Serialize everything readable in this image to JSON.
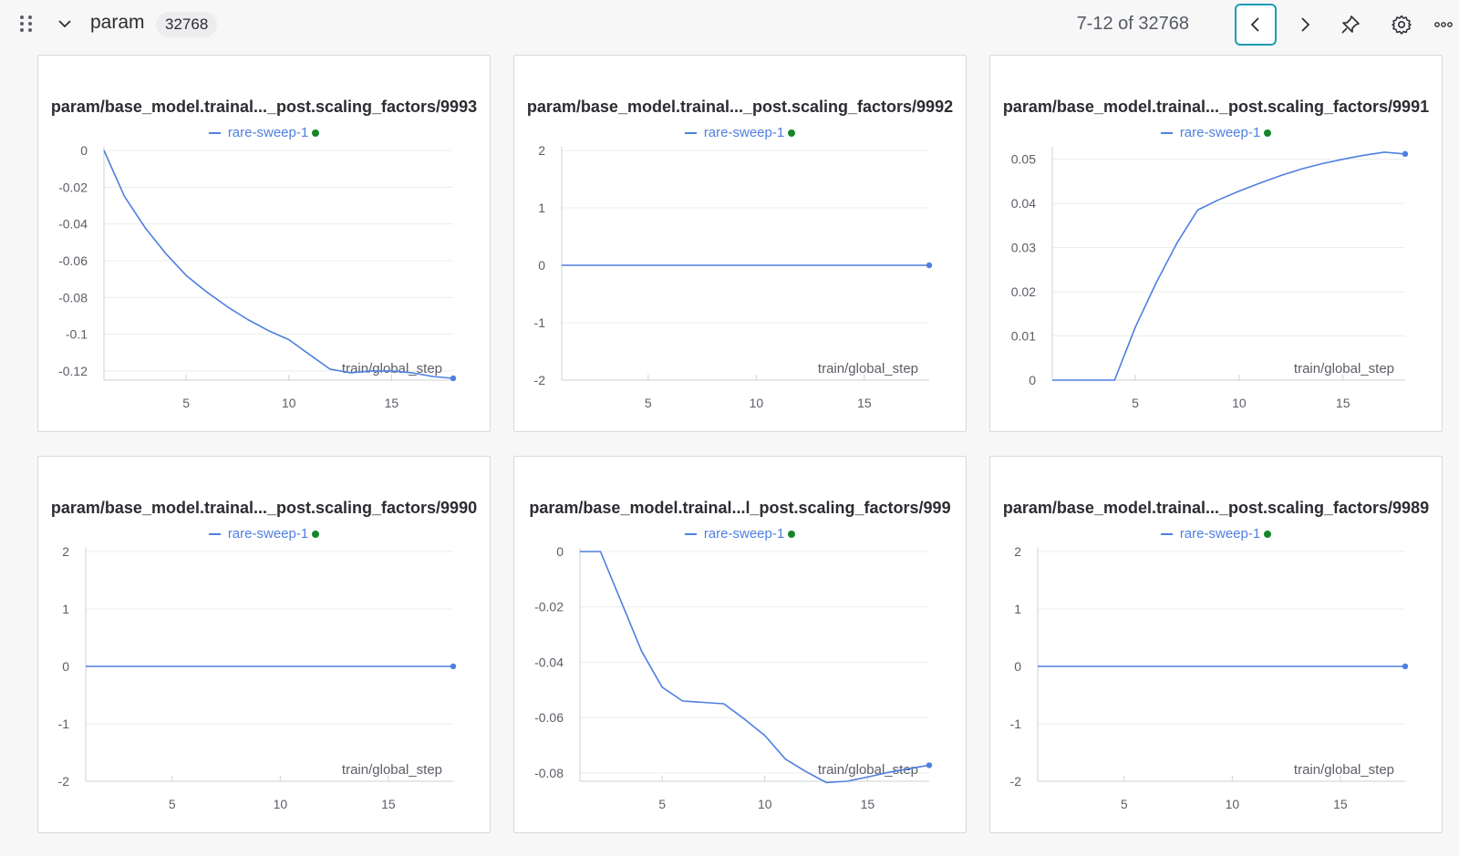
{
  "header": {
    "section_name": "param",
    "count": "32768",
    "pager": "7-12 of 32768",
    "icons": [
      "drag-handle-icon",
      "chevron-down-icon",
      "chevron-left-icon",
      "chevron-right-icon",
      "pin-icon",
      "gear-icon",
      "more-icon"
    ]
  },
  "colors": {
    "series": "#4f7fe0",
    "run_dot": "#16862a",
    "active_border": "#1e9bb4"
  },
  "chart_data": [
    {
      "type": "line",
      "title": "param/base_model.trainal..._post.scaling_factors/9993",
      "legend": "rare-sweep-1",
      "xlabel": "train/global_step",
      "xlim": [
        1,
        18
      ],
      "ylim": [
        -0.125,
        0
      ],
      "xticks": [
        5,
        10,
        15
      ],
      "yticks": [
        0,
        -0.02,
        -0.04,
        -0.06,
        -0.08,
        -0.1,
        -0.12
      ],
      "ytick_labels": [
        "0",
        "-0.02",
        "-0.04",
        "-0.06",
        "-0.08",
        "-0.1",
        "-0.12"
      ],
      "series": [
        {
          "name": "rare-sweep-1",
          "x": [
            1,
            2,
            3,
            4,
            5,
            6,
            7,
            8,
            9,
            10,
            11,
            12,
            13,
            14,
            15,
            16,
            17,
            18
          ],
          "y": [
            0,
            -0.025,
            -0.042,
            -0.056,
            -0.068,
            -0.077,
            -0.085,
            -0.092,
            -0.098,
            -0.103,
            -0.111,
            -0.119,
            -0.121,
            -0.12,
            -0.12,
            -0.121,
            -0.123,
            -0.124
          ]
        }
      ]
    },
    {
      "type": "line",
      "title": "param/base_model.trainal..._post.scaling_factors/9992",
      "legend": "rare-sweep-1",
      "xlabel": "train/global_step",
      "xlim": [
        1,
        18
      ],
      "ylim": [
        -2,
        2
      ],
      "xticks": [
        5,
        10,
        15
      ],
      "yticks": [
        2,
        1,
        0,
        -1,
        -2
      ],
      "ytick_labels": [
        "2",
        "1",
        "0",
        "-1",
        "-2"
      ],
      "series": [
        {
          "name": "rare-sweep-1",
          "x": [
            1,
            2,
            3,
            4,
            5,
            6,
            7,
            8,
            9,
            10,
            11,
            12,
            13,
            14,
            15,
            16,
            17,
            18
          ],
          "y": [
            0,
            0,
            0,
            0,
            0,
            0,
            0,
            0,
            0,
            0,
            0,
            0,
            0,
            0,
            0,
            0,
            0,
            0
          ]
        }
      ]
    },
    {
      "type": "line",
      "title": "param/base_model.trainal..._post.scaling_factors/9991",
      "legend": "rare-sweep-1",
      "xlabel": "train/global_step",
      "xlim": [
        1,
        18
      ],
      "ylim": [
        0,
        0.052
      ],
      "xticks": [
        5,
        10,
        15
      ],
      "yticks": [
        0,
        0.01,
        0.02,
        0.03,
        0.04,
        0.05
      ],
      "ytick_labels": [
        "0",
        "0.01",
        "0.02",
        "0.03",
        "0.04",
        "0.05"
      ],
      "series": [
        {
          "name": "rare-sweep-1",
          "x": [
            1,
            2,
            3,
            4,
            5,
            6,
            7,
            8,
            9,
            10,
            11,
            12,
            13,
            14,
            15,
            16,
            17,
            18
          ],
          "y": [
            0,
            0,
            0,
            0,
            0.012,
            0.022,
            0.031,
            0.0385,
            0.0408,
            0.0428,
            0.0446,
            0.0463,
            0.0478,
            0.049,
            0.05,
            0.0509,
            0.0516,
            0.0512
          ]
        }
      ]
    },
    {
      "type": "line",
      "title": "param/base_model.trainal..._post.scaling_factors/9990",
      "legend": "rare-sweep-1",
      "xlabel": "train/global_step",
      "xlim": [
        1,
        18
      ],
      "ylim": [
        -2,
        2
      ],
      "xticks": [
        5,
        10,
        15
      ],
      "yticks": [
        2,
        1,
        0,
        -1,
        -2
      ],
      "ytick_labels": [
        "2",
        "1",
        "0",
        "-1",
        "-2"
      ],
      "series": [
        {
          "name": "rare-sweep-1",
          "x": [
            1,
            2,
            3,
            4,
            5,
            6,
            7,
            8,
            9,
            10,
            11,
            12,
            13,
            14,
            15,
            16,
            17,
            18
          ],
          "y": [
            0,
            0,
            0,
            0,
            0,
            0,
            0,
            0,
            0,
            0,
            0,
            0,
            0,
            0,
            0,
            0,
            0,
            0
          ]
        }
      ]
    },
    {
      "type": "line",
      "title": "param/base_model.trainal...l_post.scaling_factors/999",
      "legend": "rare-sweep-1",
      "xlabel": "train/global_step",
      "xlim": [
        1,
        18
      ],
      "ylim": [
        -0.083,
        0
      ],
      "xticks": [
        5,
        10,
        15
      ],
      "yticks": [
        0,
        -0.02,
        -0.04,
        -0.06,
        -0.08
      ],
      "ytick_labels": [
        "0",
        "-0.02",
        "-0.04",
        "-0.06",
        "-0.08"
      ],
      "series": [
        {
          "name": "rare-sweep-1",
          "x": [
            1,
            2,
            3,
            4,
            5,
            6,
            7,
            8,
            9,
            10,
            11,
            12,
            13,
            14,
            15,
            16,
            17,
            18
          ],
          "y": [
            0,
            0,
            -0.018,
            -0.036,
            -0.049,
            -0.054,
            -0.0545,
            -0.055,
            -0.0605,
            -0.0665,
            -0.075,
            -0.0795,
            -0.0835,
            -0.083,
            -0.0815,
            -0.0798,
            -0.0785,
            -0.0772
          ]
        }
      ]
    },
    {
      "type": "line",
      "title": "param/base_model.trainal..._post.scaling_factors/9989",
      "legend": "rare-sweep-1",
      "xlabel": "train/global_step",
      "xlim": [
        1,
        18
      ],
      "ylim": [
        -2,
        2
      ],
      "xticks": [
        5,
        10,
        15
      ],
      "yticks": [
        2,
        1,
        0,
        -1,
        -2
      ],
      "ytick_labels": [
        "2",
        "1",
        "0",
        "-1",
        "-2"
      ],
      "series": [
        {
          "name": "rare-sweep-1",
          "x": [
            1,
            2,
            3,
            4,
            5,
            6,
            7,
            8,
            9,
            10,
            11,
            12,
            13,
            14,
            15,
            16,
            17,
            18
          ],
          "y": [
            0,
            0,
            0,
            0,
            0,
            0,
            0,
            0,
            0,
            0,
            0,
            0,
            0,
            0,
            0,
            0,
            0,
            0
          ]
        }
      ]
    }
  ]
}
